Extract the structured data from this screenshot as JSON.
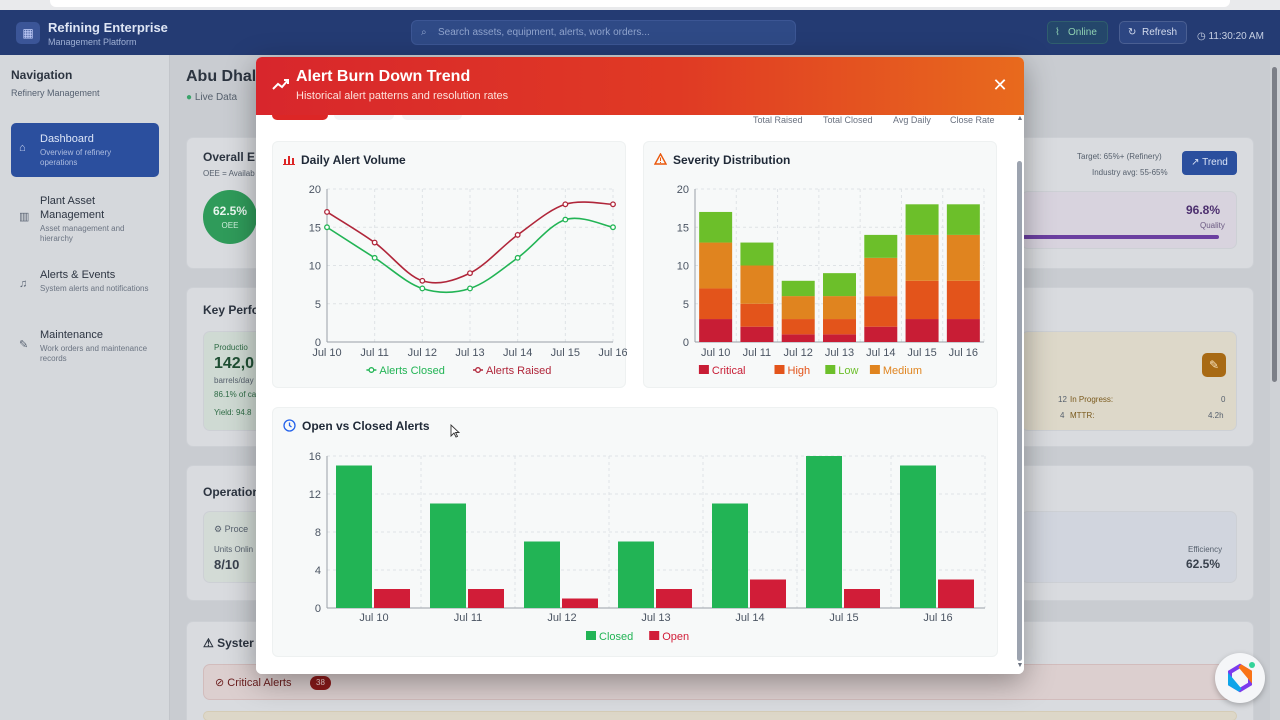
{
  "app": {
    "brand_title": "Refining Enterprise",
    "brand_subtitle": "Management Platform",
    "search_placeholder": "Search assets, equipment, alerts, work orders...",
    "status_online": "Online",
    "refresh_label": "Refresh",
    "clock": "11:30:20 AM"
  },
  "sidebar": {
    "title": "Navigation",
    "subtitle": "Refinery Management",
    "items": [
      {
        "label": "Dashboard",
        "desc": "Overview of refinery operations",
        "icon": "home-icon",
        "active": true
      },
      {
        "label": "Plant Asset Management",
        "desc": "Asset management and hierarchy",
        "icon": "chart-bars-icon",
        "active": false
      },
      {
        "label": "Alerts & Events",
        "desc": "System alerts and notifications",
        "icon": "bell-icon",
        "active": false
      },
      {
        "label": "Maintenance",
        "desc": "Work orders and maintenance records",
        "icon": "wrench-icon",
        "active": false
      }
    ]
  },
  "background": {
    "site_title": "Abu Dhal",
    "live_data": "Live Data",
    "oee_card_title": "Overall E",
    "oee_card_sub": "OEE = Availab",
    "oee_value": "62.5%",
    "oee_label": "OEE",
    "target": "Target: 65%+ (Refinery)",
    "industry_avg": "Industry avg: 55-65%",
    "trend_button": "Trend",
    "quality_value": "96.8%",
    "quality_label": "Quality",
    "kpi_title": "Key Perfo",
    "production_label": "Productio",
    "production_value": "142,0",
    "production_unit": "barrels/day",
    "production_pct": "86.1% of ca",
    "yield": "Yield: 94.8",
    "in_progress_count": "12",
    "in_progress_label": "In Progress:",
    "in_progress_value": "0",
    "mttr_count": "4",
    "mttr_label": "MTTR:",
    "mttr_value": "4.2h",
    "ops_title": "Operation",
    "process_label": "Proce",
    "units_online_label": "Units Onlin",
    "units_online_value": "8/10",
    "efficiency_label": "Efficiency",
    "efficiency_value": "62.5%",
    "system_title": "Syster",
    "critical_alerts_label": "Critical Alerts",
    "critical_alerts_count": "38"
  },
  "modal": {
    "title": "Alert Burn Down Trend",
    "subtitle": "Historical alert patterns and resolution rates",
    "stat_headers": [
      "Total Raised",
      "Total Closed",
      "Avg Daily",
      "Close Rate"
    ],
    "colors": {
      "header_start": "#d8262c",
      "header_end": "#e86a1d",
      "closed": "#22b455",
      "raised": "#b0263a",
      "open": "#d11d38",
      "critical": "#c81d35",
      "high": "#e3541b",
      "low": "#6cbf2a",
      "medium": "#e0841f"
    }
  },
  "chart_data": [
    {
      "type": "line",
      "title": "Daily Alert Volume",
      "categories": [
        "Jul 10",
        "Jul 11",
        "Jul 12",
        "Jul 13",
        "Jul 14",
        "Jul 15",
        "Jul 16"
      ],
      "series": [
        {
          "name": "Alerts Closed",
          "values": [
            15,
            11,
            7,
            7,
            11,
            16,
            15
          ]
        },
        {
          "name": "Alerts Raised",
          "values": [
            17,
            13,
            8,
            9,
            14,
            18,
            18
          ]
        }
      ],
      "ylim": [
        0,
        20
      ],
      "yticks": [
        0,
        5,
        10,
        15,
        20
      ],
      "grid": true,
      "legend": "bottom"
    },
    {
      "type": "bar",
      "stacked": true,
      "title": "Severity Distribution",
      "categories": [
        "Jul 10",
        "Jul 11",
        "Jul 12",
        "Jul 13",
        "Jul 14",
        "Jul 15",
        "Jul 16"
      ],
      "series": [
        {
          "name": "Critical",
          "values": [
            3,
            2,
            1,
            1,
            2,
            3,
            3
          ]
        },
        {
          "name": "High",
          "values": [
            4,
            3,
            2,
            2,
            4,
            5,
            5
          ]
        },
        {
          "name": "Medium",
          "values": [
            6,
            5,
            3,
            3,
            5,
            6,
            6
          ]
        },
        {
          "name": "Low",
          "values": [
            4,
            3,
            2,
            3,
            3,
            4,
            4
          ]
        }
      ],
      "legend_order": [
        "Critical",
        "High",
        "Low",
        "Medium"
      ],
      "ylim": [
        0,
        20
      ],
      "yticks": [
        0,
        5,
        10,
        15,
        20
      ],
      "grid": true,
      "legend": "bottom"
    },
    {
      "type": "bar",
      "title": "Open vs Closed Alerts",
      "categories": [
        "Jul 10",
        "Jul 11",
        "Jul 12",
        "Jul 13",
        "Jul 14",
        "Jul 15",
        "Jul 16"
      ],
      "series": [
        {
          "name": "Closed",
          "values": [
            15,
            11,
            7,
            7,
            11,
            16,
            15
          ]
        },
        {
          "name": "Open",
          "values": [
            2,
            2,
            1,
            2,
            3,
            2,
            3
          ]
        }
      ],
      "ylim": [
        0,
        16
      ],
      "yticks": [
        0,
        4,
        8,
        12,
        16
      ],
      "grid": true,
      "legend": "bottom"
    }
  ]
}
